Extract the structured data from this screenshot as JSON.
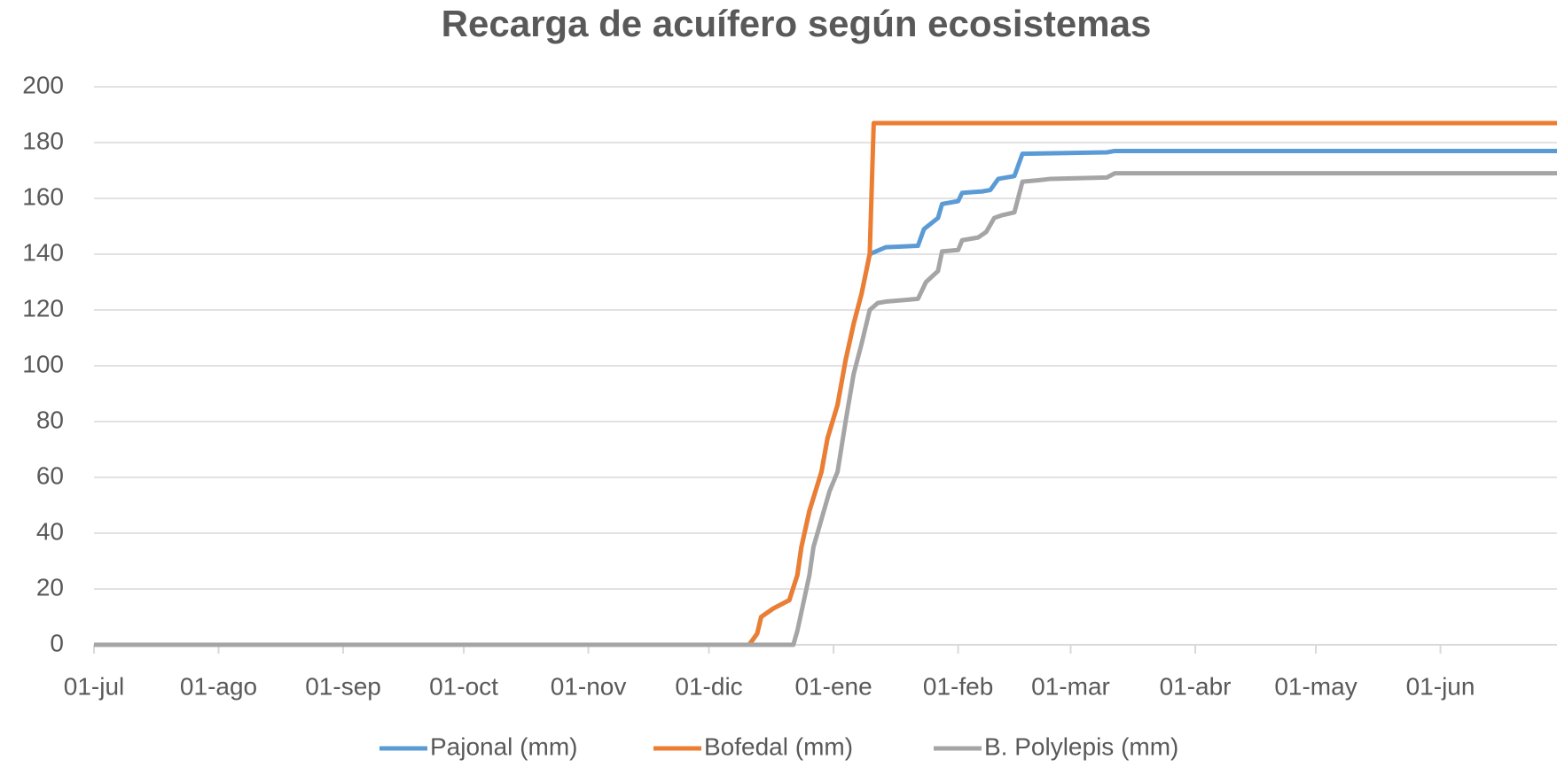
{
  "chart_data": {
    "type": "line",
    "title": "Recarga de acuífero según ecosistemas",
    "xlim": [
      0,
      364
    ],
    "xticks": [
      {
        "value": 0,
        "label": "01-jul"
      },
      {
        "value": 31,
        "label": "01-ago"
      },
      {
        "value": 62,
        "label": "01-sep"
      },
      {
        "value": 92,
        "label": "01-oct"
      },
      {
        "value": 123,
        "label": "01-nov"
      },
      {
        "value": 153,
        "label": "01-dic"
      },
      {
        "value": 184,
        "label": "01-ene"
      },
      {
        "value": 215,
        "label": "01-feb"
      },
      {
        "value": 243,
        "label": "01-mar"
      },
      {
        "value": 274,
        "label": "01-abr"
      },
      {
        "value": 304,
        "label": "01-may"
      },
      {
        "value": 335,
        "label": "01-jun"
      }
    ],
    "ylim": [
      0,
      200
    ],
    "yticks": [
      0,
      20,
      40,
      60,
      80,
      100,
      120,
      140,
      160,
      180,
      200
    ],
    "grid": true,
    "legend": "bottom",
    "series": [
      {
        "name": "Pajonal (mm)",
        "color": "#5b9bd5",
        "x": [
          0,
          163,
          165,
          166,
          169,
          173,
          175,
          176,
          178,
          181,
          182.5,
          185,
          187,
          189,
          191,
          193,
          194.6,
          197,
          205,
          206.5,
          210,
          211,
          215,
          216,
          221,
          223,
          225,
          229,
          231,
          252,
          254,
          364
        ],
        "values": [
          0,
          0,
          4,
          10,
          13,
          16,
          25,
          35,
          48,
          62,
          74,
          86,
          102,
          115,
          126,
          140,
          141,
          142.5,
          143,
          149,
          153,
          158,
          159,
          162,
          162.5,
          163,
          167,
          168,
          176,
          176.5,
          177,
          177
        ]
      },
      {
        "name": "Bofedal (mm)",
        "color": "#ed7d31",
        "x": [
          0,
          163,
          165,
          166,
          169,
          173,
          175,
          176,
          178,
          181,
          182.5,
          185,
          187,
          189,
          191,
          193,
          194,
          364
        ],
        "values": [
          0,
          0,
          4,
          10,
          13,
          16,
          25,
          35,
          48,
          62,
          74,
          86,
          102,
          115,
          126,
          140,
          187,
          187
        ]
      },
      {
        "name": "B. Polylepis (mm)",
        "color": "#a5a5a5",
        "x": [
          0,
          174,
          175,
          178,
          179,
          181,
          183,
          185,
          187,
          189,
          191,
          193,
          195,
          197,
          205,
          207,
          210,
          211,
          215,
          216,
          220,
          222,
          224,
          226,
          229,
          231,
          235,
          238,
          252,
          254,
          364
        ],
        "values": [
          0,
          0,
          5,
          25,
          35,
          45,
          55,
          62,
          80,
          97,
          108,
          120,
          122.5,
          123,
          124,
          130,
          134,
          141,
          141.5,
          145,
          146,
          148,
          153,
          154,
          155,
          166,
          166.5,
          167,
          167.5,
          169,
          169
        ]
      }
    ]
  }
}
